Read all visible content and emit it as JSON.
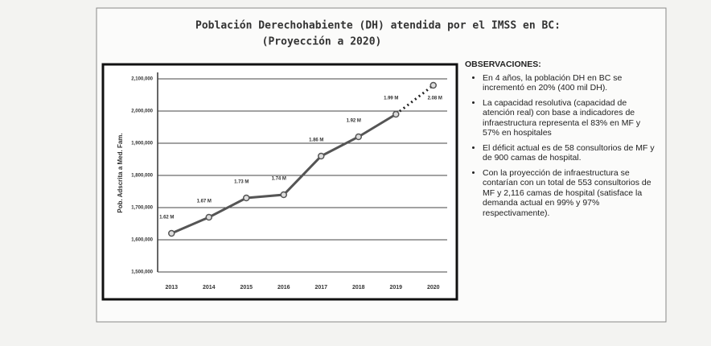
{
  "chart_data": {
    "type": "line",
    "title": "Población Derechohabiente (DH) atendida por el IMSS en BC:",
    "subtitle": "(Proyección a 2020)",
    "y_label": "Pob. Adscrita a Med. Fam.",
    "categories": [
      "2013",
      "2014",
      "2015",
      "2016",
      "2017",
      "2018",
      "2019",
      "2020"
    ],
    "series": [
      {
        "name": "Población DH",
        "color": "#555555",
        "values": [
          1620000,
          1670000,
          1730000,
          1740000,
          1860000,
          1920000,
          1990000,
          2080000
        ],
        "value_labels": [
          "1.62 M",
          "1.67 M",
          "1.73 M",
          "1.74 M",
          "1.86 M",
          "1.92 M",
          "1.99 M",
          "2.08 M"
        ]
      }
    ],
    "line_style_last_segment": "dotted",
    "ylim": [
      1500000,
      2100000
    ],
    "yticks": [
      {
        "value": 1500000,
        "label": "1,500,000"
      },
      {
        "value": 1600000,
        "label": "1,600,000"
      },
      {
        "value": 1700000,
        "label": "1,700,000"
      },
      {
        "value": 1800000,
        "label": "1,800,000"
      },
      {
        "value": 1900000,
        "label": "1,900,000"
      },
      {
        "value": 2000000,
        "label": "2,000,000"
      },
      {
        "value": 2100000,
        "label": "2,100,000"
      }
    ],
    "grid": true,
    "observations_title": "OBSERVACIONES:",
    "observations": [
      "En 4 años, la población DH en BC se incrementó en 20% (400 mil DH).",
      "La capacidad resolutiva (capacidad de atención real) con base a indicadores de infraestructura representa el 83% en MF y 57% en hospitales",
      "El déficit actual es de 58 consultorios de MF y de 900 camas de hospital.",
      "Con la proyección de infraestructura se contarían con un total de 553 consultorios de MF y 2,116 camas de hospital (satisface la demanda actual en 99% y 97% respectivamente)."
    ]
  }
}
